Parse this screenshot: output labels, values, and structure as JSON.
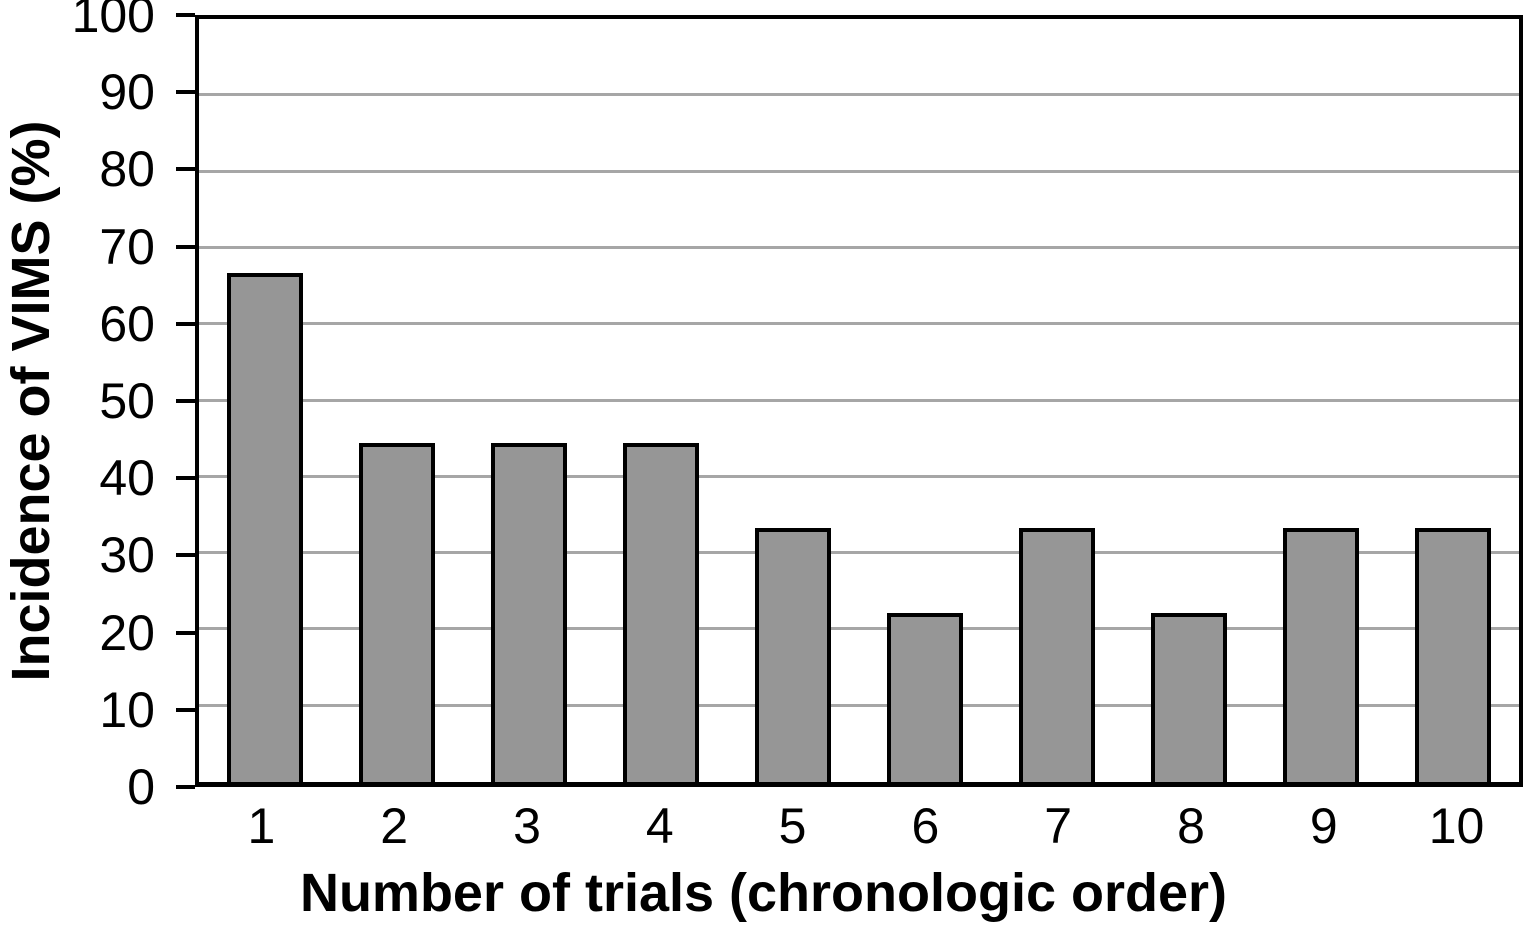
{
  "figure": {
    "background": "#ffffff",
    "text_color": "#000000"
  },
  "chart_data": {
    "type": "bar",
    "title": "",
    "xlabel": "Number of trials (chronologic order)",
    "ylabel": "Incidence of VIMS (%)",
    "categories": [
      "1",
      "2",
      "3",
      "4",
      "5",
      "6",
      "7",
      "8",
      "9",
      "10"
    ],
    "values": [
      66.7,
      44.4,
      44.4,
      44.4,
      33.3,
      22.2,
      33.3,
      22.2,
      33.3,
      33.3
    ],
    "ylim": [
      0,
      100
    ],
    "yticks": [
      0,
      10,
      20,
      30,
      40,
      50,
      60,
      70,
      80,
      90,
      100
    ],
    "grid": "horizontal",
    "legend": null,
    "bar_fill": "#969696",
    "bar_border": "#000000",
    "gridline_color": "#a6a6a6",
    "axis_color": "#000000"
  }
}
